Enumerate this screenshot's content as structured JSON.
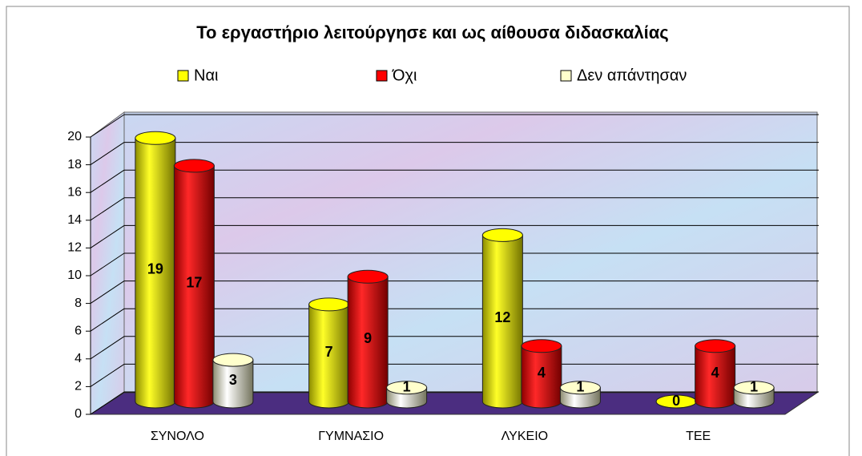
{
  "chart_data": {
    "type": "bar3d",
    "title": "Το εργαστήριο λειτούργησε και ως αίθουσα διδασκαλίας",
    "categories": [
      "ΣΥΝΟΛΟ",
      "ΓΥΜΝΑΣΙΟ",
      "ΛΥΚΕΙΟ",
      "ΤΕΕ"
    ],
    "series": [
      {
        "name": "Ναι",
        "color": "#ffff00",
        "values": [
          19,
          7,
          12,
          0
        ]
      },
      {
        "name": "Όχι",
        "color": "#ff0000",
        "values": [
          17,
          9,
          4,
          4
        ]
      },
      {
        "name": "Δεν απάντησαν",
        "color": "#ffffcc",
        "values": [
          3,
          1,
          1,
          1
        ]
      }
    ],
    "ylim": [
      0,
      20
    ],
    "yticks": [
      0,
      2,
      4,
      6,
      8,
      10,
      12,
      14,
      16,
      18,
      20
    ],
    "grid": true,
    "legend": "top"
  }
}
